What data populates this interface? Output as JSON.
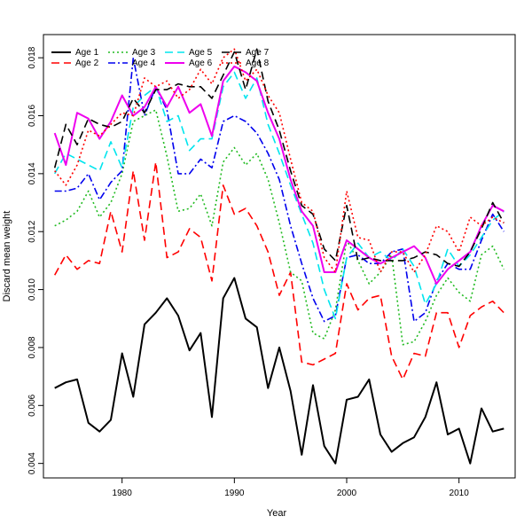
{
  "chart_data": {
    "type": "line",
    "title": "",
    "xlabel": "Year",
    "ylabel": "Discard mean weight",
    "xlim": [
      1973,
      2015
    ],
    "ylim": [
      0.0035,
      0.0188
    ],
    "xticks": [
      1980,
      1990,
      2000,
      2010
    ],
    "xtick_labels": [
      "1980",
      "1990",
      "2000",
      "2010"
    ],
    "yticks": [
      0.004,
      0.006,
      0.008,
      0.01,
      0.012,
      0.014,
      0.016,
      0.018
    ],
    "ytick_labels": [
      "0.004",
      "0.006",
      "0.008",
      "0.010",
      "0.012",
      "0.014",
      "0.016",
      "0.018"
    ],
    "grid": false,
    "legend_position": "top-left",
    "x": [
      1974,
      1975,
      1976,
      1977,
      1978,
      1979,
      1980,
      1981,
      1982,
      1983,
      1984,
      1985,
      1986,
      1987,
      1988,
      1989,
      1990,
      1991,
      1992,
      1993,
      1994,
      1995,
      1996,
      1997,
      1998,
      1999,
      2000,
      2001,
      2002,
      2003,
      2004,
      2005,
      2006,
      2007,
      2008,
      2009,
      2010,
      2011,
      2012,
      2013,
      2014
    ],
    "series": [
      {
        "name": "Age 1",
        "color": "#000000",
        "dash": "solid",
        "width": 2,
        "values": [
          0.0066,
          0.0068,
          0.0069,
          0.0054,
          0.0051,
          0.0055,
          0.0078,
          0.0063,
          0.0088,
          0.0092,
          0.0097,
          0.0091,
          0.0079,
          0.0085,
          0.0056,
          0.0097,
          0.0104,
          0.009,
          0.0087,
          0.0066,
          0.008,
          0.0065,
          0.0043,
          0.0067,
          0.0046,
          0.004,
          0.0062,
          0.0063,
          0.0069,
          0.005,
          0.0044,
          0.0047,
          0.0049,
          0.0056,
          0.0068,
          0.005,
          0.0052,
          0.004,
          0.0059,
          0.0051,
          0.0052
        ]
      },
      {
        "name": "Age 2",
        "color": "#ff0000",
        "dash": "long",
        "width": 1.6,
        "values": [
          0.0105,
          0.0112,
          0.0107,
          0.011,
          0.0109,
          0.0127,
          0.0113,
          0.0141,
          0.0117,
          0.0144,
          0.0111,
          0.0113,
          0.0121,
          0.0118,
          0.0103,
          0.0136,
          0.0126,
          0.0128,
          0.0122,
          0.0113,
          0.0098,
          0.0106,
          0.0075,
          0.0074,
          0.0076,
          0.0078,
          0.0102,
          0.0093,
          0.0097,
          0.0098,
          0.0077,
          0.0069,
          0.0078,
          0.0077,
          0.0092,
          0.0092,
          0.008,
          0.0091,
          0.0094,
          0.0096,
          0.0092
        ]
      },
      {
        "name": "Age 3",
        "color": "#22bb22",
        "dash": "dotted",
        "width": 1.6,
        "values": [
          0.0122,
          0.0124,
          0.0127,
          0.0134,
          0.0125,
          0.013,
          0.014,
          0.0158,
          0.016,
          0.0162,
          0.0146,
          0.0127,
          0.0128,
          0.0133,
          0.0122,
          0.0144,
          0.0149,
          0.0143,
          0.0147,
          0.0138,
          0.0123,
          0.0106,
          0.0103,
          0.0085,
          0.0083,
          0.0093,
          0.0117,
          0.011,
          0.0102,
          0.0106,
          0.0112,
          0.0081,
          0.0082,
          0.0089,
          0.0098,
          0.0104,
          0.0099,
          0.0096,
          0.0112,
          0.0115,
          0.0107
        ]
      },
      {
        "name": "Age 4",
        "color": "#0000ee",
        "dash": "dashdot",
        "width": 1.6,
        "values": [
          0.0134,
          0.0134,
          0.0135,
          0.014,
          0.0131,
          0.0137,
          0.0141,
          0.018,
          0.016,
          0.017,
          0.0162,
          0.014,
          0.014,
          0.0145,
          0.0142,
          0.0158,
          0.016,
          0.0158,
          0.0154,
          0.0147,
          0.0138,
          0.0122,
          0.0109,
          0.0097,
          0.0089,
          0.0091,
          0.0111,
          0.0112,
          0.0109,
          0.0109,
          0.0113,
          0.0114,
          0.0089,
          0.0092,
          0.0103,
          0.0109,
          0.0107,
          0.0107,
          0.0117,
          0.0126,
          0.012
        ]
      },
      {
        "name": "Age 5",
        "color": "#00e5ee",
        "dash": "long",
        "width": 1.6,
        "values": [
          0.014,
          0.0147,
          0.0145,
          0.0143,
          0.0141,
          0.0151,
          0.0142,
          0.0163,
          0.0167,
          0.017,
          0.0158,
          0.016,
          0.0148,
          0.0152,
          0.0152,
          0.017,
          0.0175,
          0.0166,
          0.0173,
          0.0157,
          0.0147,
          0.0136,
          0.0126,
          0.0116,
          0.01,
          0.009,
          0.0111,
          0.0116,
          0.0111,
          0.0113,
          0.011,
          0.0114,
          0.0108,
          0.0095,
          0.0102,
          0.0114,
          0.0108,
          0.0112,
          0.0118,
          0.0124,
          0.0127
        ]
      },
      {
        "name": "Age 6",
        "color": "#ee00ee",
        "dash": "solid",
        "width": 2,
        "values": [
          0.0154,
          0.0143,
          0.0161,
          0.0159,
          0.0152,
          0.0158,
          0.0167,
          0.016,
          0.0163,
          0.017,
          0.0163,
          0.017,
          0.0161,
          0.0164,
          0.0153,
          0.0172,
          0.0177,
          0.0175,
          0.0172,
          0.0161,
          0.0152,
          0.0138,
          0.0127,
          0.0122,
          0.0106,
          0.0106,
          0.0117,
          0.0114,
          0.0111,
          0.0109,
          0.0111,
          0.0113,
          0.0115,
          0.0111,
          0.0102,
          0.0107,
          0.011,
          0.0113,
          0.0122,
          0.0129,
          0.0127
        ]
      },
      {
        "name": "Age 7",
        "color": "#000000",
        "dash": "long",
        "width": 1.6,
        "values": [
          0.0142,
          0.0157,
          0.015,
          0.0159,
          0.0157,
          0.0156,
          0.0158,
          0.0166,
          0.0161,
          0.0169,
          0.0169,
          0.0171,
          0.017,
          0.017,
          0.0166,
          0.0174,
          0.0182,
          0.0169,
          0.0183,
          0.0165,
          0.0155,
          0.0141,
          0.0129,
          0.0126,
          0.0114,
          0.011,
          0.0129,
          0.011,
          0.0111,
          0.011,
          0.011,
          0.011,
          0.0111,
          0.0113,
          0.0112,
          0.0109,
          0.0108,
          0.0113,
          0.0121,
          0.013,
          0.0123
        ]
      },
      {
        "name": "Age 8",
        "color": "#ff0000",
        "dash": "dotted",
        "width": 1.6,
        "values": [
          0.0141,
          0.0136,
          0.0143,
          0.0155,
          0.0153,
          0.0157,
          0.0161,
          0.016,
          0.0173,
          0.017,
          0.0172,
          0.0166,
          0.0169,
          0.0176,
          0.0171,
          0.018,
          0.0183,
          0.0172,
          0.0176,
          0.0167,
          0.0161,
          0.0145,
          0.013,
          0.0127,
          0.0111,
          0.0106,
          0.0134,
          0.0118,
          0.0117,
          0.0106,
          0.0113,
          0.0113,
          0.0106,
          0.0112,
          0.0122,
          0.012,
          0.0113,
          0.0125,
          0.0122,
          0.0125,
          0.0123
        ]
      }
    ]
  }
}
